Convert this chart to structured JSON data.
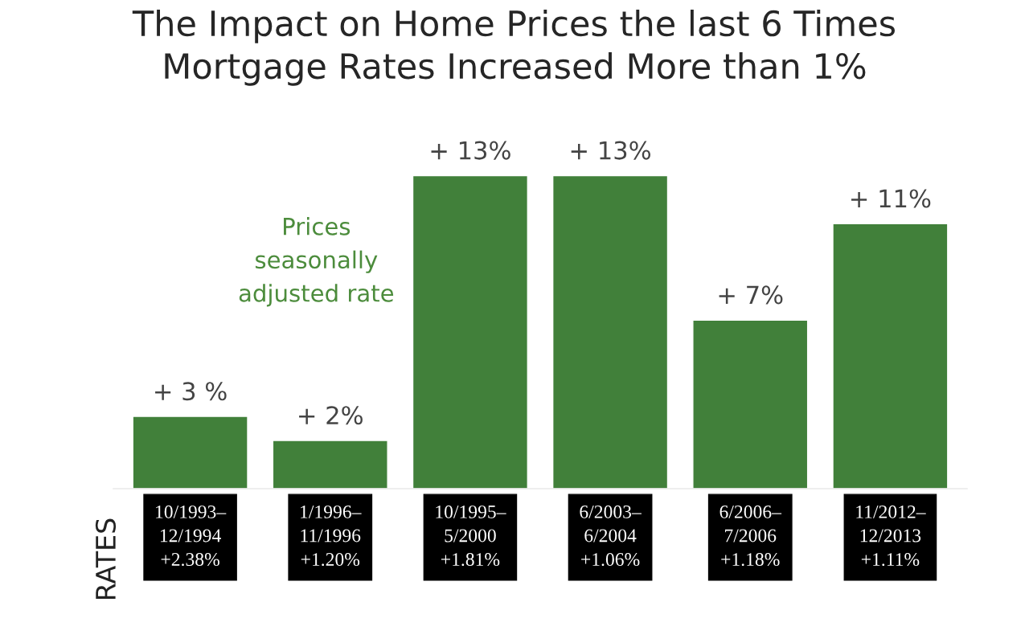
{
  "chart_data": {
    "type": "bar",
    "title": "The Impact on Home Prices the last 6 Times\nMortgage Rates Increased More than 1%",
    "categories": [
      "10/1993–\n12/1994\n+2.38%",
      "1/1996–\n11/1996\n+1.20%",
      "10/1995–\n5/2000\n+1.81%",
      "6/2003–\n6/2004\n+1.06%",
      "6/2006–\n7/2006\n+1.18%",
      "11/2012–\n12/2013\n+1.11%"
    ],
    "values": [
      3,
      2,
      13,
      13,
      7,
      11
    ],
    "value_labels": [
      "+ 3 %",
      "+ 2%",
      "+ 13%",
      "+ 13%",
      "+ 7%",
      "+ 11%"
    ],
    "color": "#41803a",
    "annotations": [
      "Prices\nseasonally\nadjusted rate",
      "RATES"
    ],
    "grid": false
  }
}
